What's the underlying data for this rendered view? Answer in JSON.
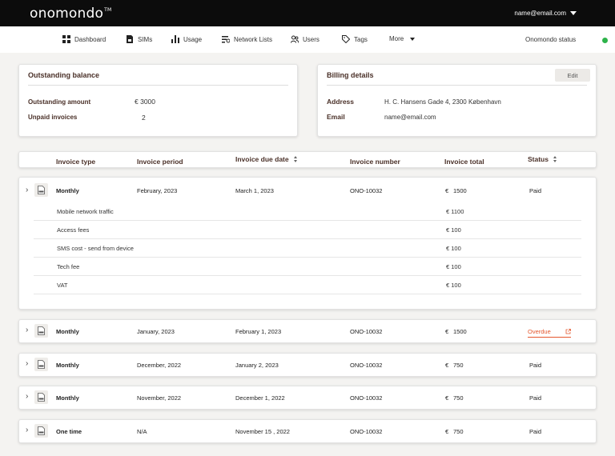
{
  "topbar": {
    "logo": "onomondo",
    "logo_mark": "TM",
    "account_email": "name@email.com"
  },
  "nav": {
    "items": [
      {
        "label": "Dashboard",
        "icon": "dashboard-icon"
      },
      {
        "label": "SIMs",
        "icon": "sim-icon"
      },
      {
        "label": "Usage",
        "icon": "usage-icon"
      },
      {
        "label": "Network Lists",
        "icon": "network-list-icon"
      },
      {
        "label": "Users",
        "icon": "users-icon"
      },
      {
        "label": "Tags",
        "icon": "tag-icon"
      },
      {
        "label": "More",
        "icon": "chevron-down-icon"
      }
    ],
    "status_label": "Onomondo status",
    "status_color": "#2db34a"
  },
  "balance": {
    "title": "Outstanding balance",
    "amount_label": "Outstanding amount",
    "amount_value": "€ 3000",
    "unpaid_label": "Unpaid invoices",
    "unpaid_value": "2"
  },
  "billing": {
    "title": "Billing details",
    "edit_label": "Edit",
    "address_label": "Address",
    "address_value": "H. C. Hansens Gade 4, 2300 København",
    "email_label": "Email",
    "email_value": "name@email.com"
  },
  "table": {
    "headers": [
      "Invoice type",
      "Invoice period",
      "Invoice due date",
      "Invoice number",
      "Invoice total",
      "Status"
    ],
    "rows": [
      {
        "type": "Monthly",
        "period": "February, 2023",
        "due": "March 1, 2023",
        "number": "ONO-10032",
        "currency": "€",
        "total": "1500",
        "status": "Paid",
        "expanded": true,
        "lines": [
          {
            "label": "Mobile network traffic",
            "amount": "€ 1100"
          },
          {
            "label": "Access fees",
            "amount": "€ 100"
          },
          {
            "label": "SMS cost - send from device",
            "amount": "€ 100"
          },
          {
            "label": "Tech fee",
            "amount": "€ 100"
          },
          {
            "label": "VAT",
            "amount": "€ 100"
          }
        ]
      },
      {
        "type": "Monthly",
        "period": "January, 2023",
        "due": "February 1, 2023",
        "number": "ONO-10032",
        "currency": "€",
        "total": "1500",
        "status": "Overdue"
      },
      {
        "type": "Monthly",
        "period": "December, 2022",
        "due": "January 2, 2023",
        "number": "ONO-10032",
        "currency": "€",
        "total": "750",
        "status": "Paid"
      },
      {
        "type": "Monthly",
        "period": "November, 2022",
        "due": "December 1, 2022",
        "number": "ONO-10032",
        "currency": "€",
        "total": "750",
        "status": "Paid"
      },
      {
        "type": "One time",
        "period": "N/A",
        "due": "November 15 , 2022",
        "number": "ONO-10032",
        "currency": "€",
        "total": "750",
        "status": "Paid"
      }
    ],
    "overdue_color": "#e4572e"
  }
}
